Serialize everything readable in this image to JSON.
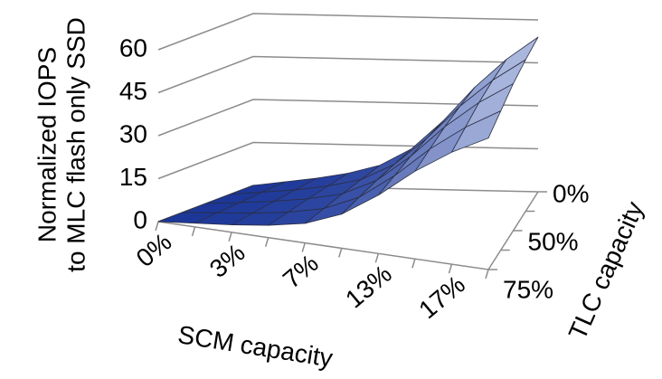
{
  "chart_data": {
    "type": "surface3d",
    "x_label": "SCM capacity",
    "y_label": "TLC capacity",
    "z_label": [
      "Normalized IOPS",
      "to MLC flash only SSD"
    ],
    "x_categories": [
      "0%",
      null,
      "3%",
      null,
      "7%",
      null,
      "13%",
      null,
      "17%",
      null
    ],
    "y_categories": [
      "0%",
      null,
      "50%",
      null,
      "75%"
    ],
    "z": [
      [
        0,
        1.5,
        3,
        5,
        8,
        14,
        24,
        36,
        46,
        54
      ],
      [
        0,
        1.5,
        2.9,
        4.9,
        7.8,
        13.7,
        23.5,
        35.3,
        45.1,
        52.9
      ],
      [
        0,
        1.4,
        2.9,
        4.8,
        7.6,
        13.3,
        22.8,
        34.2,
        43.7,
        51.3
      ],
      [
        0,
        1.4,
        2.7,
        4.5,
        7.2,
        12.6,
        21.6,
        32.4,
        41.4,
        48.6
      ],
      [
        0,
        1.3,
        2.6,
        4.3,
        6.8,
        11.9,
        20.4,
        30.6,
        39.1,
        45.9
      ]
    ],
    "zlim": [
      0,
      60
    ],
    "zticks": [
      0,
      15,
      30,
      45,
      60
    ],
    "colors": [
      "#1a3597",
      "#c9d3ec"
    ],
    "grid": true
  }
}
